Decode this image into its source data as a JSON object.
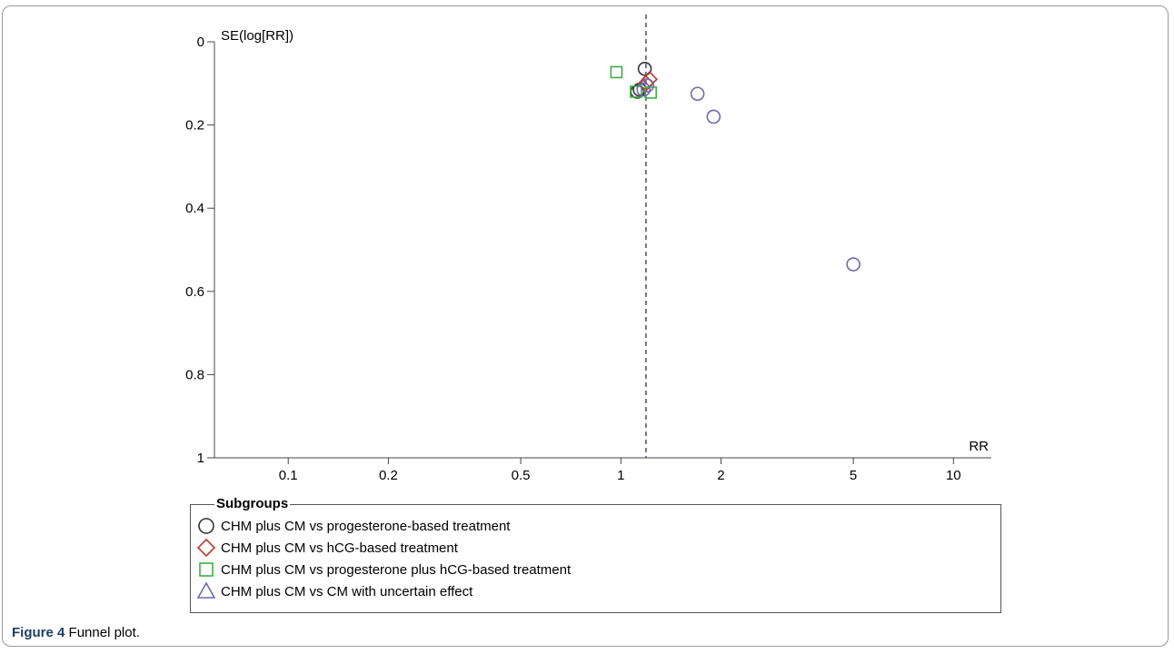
{
  "chart_data": {
    "type": "scatter",
    "xlabel": "RR",
    "ylabel": "SE(log[RR])",
    "x_scale": "log",
    "y_reversed": true,
    "xlim": [
      0.06,
      13
    ],
    "ylim": [
      0,
      1
    ],
    "x_ticks": [
      0.1,
      0.2,
      0.5,
      1,
      2,
      5,
      10
    ],
    "x_tick_labels": [
      "0.1",
      "0.2",
      "0.5",
      "1",
      "2",
      "5",
      "10"
    ],
    "y_ticks": [
      0,
      0.2,
      0.4,
      0.6,
      0.8,
      1
    ],
    "y_tick_labels": [
      "0",
      "0.2",
      "0.4",
      "0.6",
      "0.8",
      "1"
    ],
    "pooled_estimate_line": 1.19,
    "series": [
      {
        "name": "CHM plus CM vs progesterone-based treatment",
        "marker": "circle",
        "color": "#333333",
        "points": [
          {
            "x": 1.18,
            "y": 0.065
          },
          {
            "x": 1.12,
            "y": 0.12
          },
          {
            "x": 1.14,
            "y": 0.115
          }
        ]
      },
      {
        "name": "CHM plus CM vs hCG-based treatment",
        "marker": "diamond",
        "color": "#c0392b",
        "points": [
          {
            "x": 1.22,
            "y": 0.09
          },
          {
            "x": 1.19,
            "y": 0.1
          }
        ]
      },
      {
        "name": "CHM plus CM vs progesterone plus hCG-based treatment",
        "marker": "square",
        "color": "#3cb043",
        "points": [
          {
            "x": 0.97,
            "y": 0.073
          },
          {
            "x": 1.23,
            "y": 0.122
          },
          {
            "x": 1.11,
            "y": 0.12
          }
        ]
      },
      {
        "name": "CHM plus CM vs CM with uncertain effect",
        "marker": "triangle",
        "color": "#6b6bb0",
        "points": [
          {
            "x": 1.17,
            "y": 0.115
          },
          {
            "x": 1.2,
            "y": 0.105
          },
          {
            "x": 1.7,
            "y": 0.125
          },
          {
            "x": 1.9,
            "y": 0.18
          },
          {
            "x": 5.0,
            "y": 0.535
          }
        ]
      }
    ]
  },
  "legend": {
    "title": "Subgroups",
    "items": [
      {
        "label": "CHM plus CM vs progesterone-based treatment",
        "marker": "circle",
        "color": "#333333"
      },
      {
        "label": "CHM plus CM vs hCG-based treatment",
        "marker": "diamond",
        "color": "#c0392b"
      },
      {
        "label": "CHM plus CM vs progesterone plus hCG-based treatment",
        "marker": "square",
        "color": "#3cb043"
      },
      {
        "label": "CHM plus CM vs CM with uncertain effect",
        "marker": "triangle",
        "color": "#6b6bb0"
      }
    ]
  },
  "caption": {
    "label": "Figure 4",
    "text": "Funnel plot."
  }
}
